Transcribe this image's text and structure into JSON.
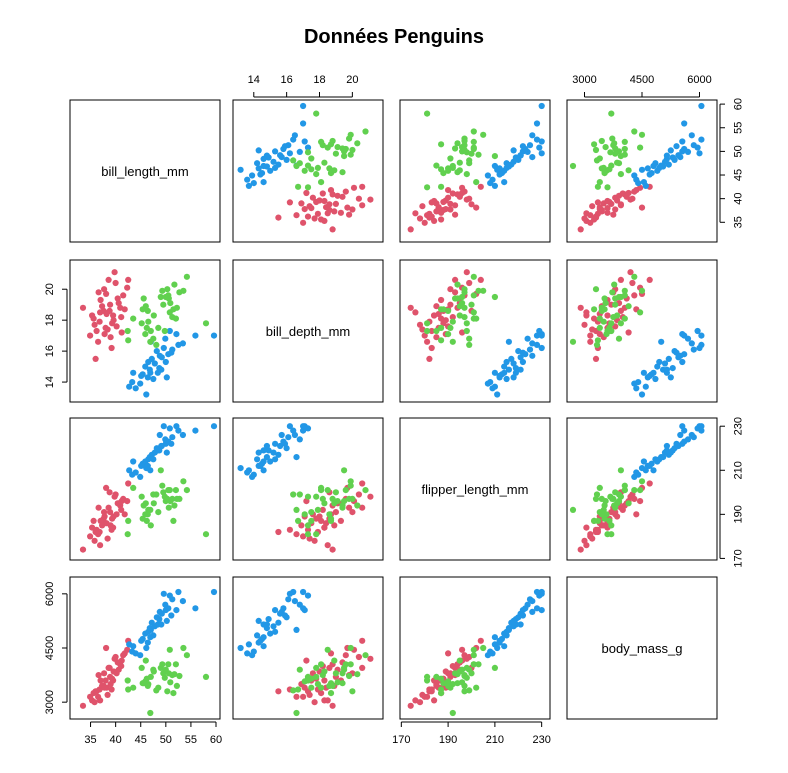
{
  "chart_data": {
    "type": "scatter",
    "title": "Données Penguins",
    "variables": [
      "bill_length_mm",
      "bill_depth_mm",
      "flipper_length_mm",
      "body_mass_g"
    ],
    "ranges": {
      "bill_length_mm": [
        32.1,
        59.6
      ],
      "bill_depth_mm": [
        13.1,
        21.5
      ],
      "flipper_length_mm": [
        172,
        231
      ],
      "body_mass_g": [
        2700,
        6300
      ]
    },
    "ticks": {
      "bill_length_mm": [
        35,
        40,
        45,
        50,
        55,
        60
      ],
      "bill_depth_mm": [
        14,
        16,
        18,
        20
      ],
      "flipper_length_mm": [
        170,
        190,
        210,
        230
      ],
      "body_mass_g": [
        3000,
        4500,
        6000
      ]
    },
    "tick_labels": {
      "bill_length_mm": [
        "35",
        "40",
        "45",
        "50",
        "55",
        "60"
      ],
      "bill_depth_mm": [
        "14",
        "16",
        "18",
        "20"
      ],
      "flipper_length_mm": [
        "170",
        "190",
        "210",
        "230"
      ],
      "body_mass_g": [
        "3000",
        "4500",
        "6000"
      ]
    },
    "series": [
      {
        "color": "#DF536B",
        "points": [
          [
            36.8,
            17.9,
            182,
            3350
          ],
          [
            38.0,
            17.5,
            186,
            3600
          ],
          [
            39.6,
            18.0,
            189,
            3850
          ],
          [
            40.9,
            18.8,
            194,
            4050
          ],
          [
            35.3,
            18.3,
            184,
            3050
          ],
          [
            37.6,
            18.6,
            188,
            3450
          ],
          [
            38.9,
            19.0,
            191,
            3700
          ],
          [
            41.5,
            19.6,
            197,
            4300
          ],
          [
            34.9,
            17.0,
            180,
            3150
          ],
          [
            36.2,
            17.3,
            183,
            3300
          ],
          [
            39.0,
            16.9,
            185,
            3500
          ],
          [
            40.2,
            17.6,
            190,
            3800
          ],
          [
            42.3,
            20.1,
            196,
            4450
          ],
          [
            37.0,
            19.3,
            187,
            3600
          ],
          [
            38.6,
            20.6,
            193,
            3950
          ],
          [
            39.8,
            21.1,
            198,
            4200
          ],
          [
            36.5,
            16.6,
            181,
            3150
          ],
          [
            38.2,
            18.4,
            186,
            3400
          ],
          [
            40.6,
            19.1,
            195,
            3900
          ],
          [
            41.1,
            18.2,
            192,
            4000
          ],
          [
            35.8,
            17.7,
            178,
            3000
          ],
          [
            37.3,
            18.9,
            185,
            3450
          ],
          [
            39.3,
            17.8,
            188,
            3650
          ],
          [
            40.0,
            20.4,
            199,
            4250
          ],
          [
            33.5,
            18.8,
            174,
            2900
          ],
          [
            36.0,
            15.5,
            182,
            3300
          ],
          [
            38.8,
            18.6,
            200,
            3950
          ],
          [
            42.5,
            20.6,
            204,
            4700
          ],
          [
            37.8,
            17.1,
            189,
            3400
          ],
          [
            39.5,
            18.3,
            184,
            3600
          ],
          [
            41.8,
            18.7,
            190,
            4350
          ],
          [
            36.6,
            19.8,
            193,
            3750
          ],
          [
            38.4,
            17.4,
            179,
            3200
          ],
          [
            40.4,
            19.4,
            195,
            4100
          ],
          [
            35.6,
            18.1,
            187,
            3250
          ],
          [
            37.7,
            20.0,
            191,
            3800
          ],
          [
            39.2,
            16.2,
            183,
            3350
          ],
          [
            41.2,
            17.2,
            196,
            4150
          ],
          [
            36.9,
            18.5,
            176,
            3050
          ],
          [
            38.1,
            19.7,
            202,
            4500
          ]
        ]
      },
      {
        "color": "#2297E6",
        "points": [
          [
            46.1,
            13.2,
            211,
            4500
          ],
          [
            47.5,
            14.2,
            215,
            4850
          ],
          [
            48.7,
            14.9,
            219,
            5300
          ],
          [
            50.0,
            15.3,
            222,
            5550
          ],
          [
            44.0,
            13.6,
            209,
            4350
          ],
          [
            45.4,
            14.5,
            213,
            4750
          ],
          [
            46.8,
            14.8,
            216,
            5050
          ],
          [
            49.2,
            15.6,
            221,
            5450
          ],
          [
            51.3,
            16.1,
            225,
            5850
          ],
          [
            52.5,
            16.4,
            228,
            6050
          ],
          [
            43.3,
            14.0,
            208,
            4400
          ],
          [
            45.9,
            15.0,
            214,
            4900
          ],
          [
            47.2,
            15.5,
            217,
            5200
          ],
          [
            48.2,
            16.0,
            220,
            5350
          ],
          [
            49.9,
            16.8,
            224,
            5700
          ],
          [
            50.8,
            17.3,
            229,
            5950
          ],
          [
            42.7,
            13.7,
            210,
            4600
          ],
          [
            46.4,
            14.3,
            212,
            4650
          ],
          [
            47.8,
            15.2,
            218,
            5100
          ],
          [
            50.5,
            15.8,
            223,
            5600
          ],
          [
            53.4,
            16.5,
            226,
            5800
          ],
          [
            44.9,
            13.9,
            207,
            4300
          ],
          [
            46.5,
            15.3,
            215,
            4950
          ],
          [
            48.4,
            14.6,
            219,
            5150
          ],
          [
            49.6,
            16.2,
            230,
            6000
          ],
          [
            51.1,
            15.9,
            222,
            5400
          ],
          [
            45.1,
            14.4,
            212,
            4700
          ],
          [
            47.0,
            16.6,
            216,
            5000
          ],
          [
            48.8,
            15.7,
            226,
            5500
          ],
          [
            43.5,
            14.6,
            214,
            4550
          ],
          [
            55.9,
            17.0,
            228,
            5600
          ],
          [
            59.6,
            17.0,
            230,
            6050
          ],
          [
            50.2,
            14.3,
            218,
            5250
          ],
          [
            46.9,
            14.6,
            210,
            4800
          ],
          [
            52.1,
            17.1,
            230,
            5550
          ],
          [
            49.1,
            14.8,
            221,
            5150
          ]
        ]
      },
      {
        "color": "#61D04F",
        "points": [
          [
            46.5,
            17.9,
            192,
            3500
          ],
          [
            49.0,
            19.5,
            210,
            3950
          ],
          [
            50.5,
            19.6,
            201,
            4050
          ],
          [
            45.2,
            17.8,
            198,
            3950
          ],
          [
            51.3,
            18.2,
            197,
            3750
          ],
          [
            47.0,
            17.3,
            185,
            3700
          ],
          [
            50.0,
            19.5,
            196,
            3900
          ],
          [
            46.0,
            18.9,
            195,
            4150
          ],
          [
            52.0,
            18.1,
            201,
            4050
          ],
          [
            49.5,
            19.0,
            200,
            3800
          ],
          [
            45.4,
            18.7,
            188,
            3525
          ],
          [
            48.5,
            17.5,
            191,
            3400
          ],
          [
            51.7,
            20.3,
            194,
            3775
          ],
          [
            46.2,
            17.5,
            187,
            3650
          ],
          [
            50.9,
            19.1,
            196,
            3550
          ],
          [
            42.5,
            16.7,
            187,
            3350
          ],
          [
            47.6,
            18.3,
            195,
            3850
          ],
          [
            52.7,
            19.8,
            197,
            3725
          ],
          [
            45.9,
            17.1,
            190,
            3575
          ],
          [
            50.6,
            19.4,
            193,
            3800
          ],
          [
            49.3,
            19.9,
            203,
            4050
          ],
          [
            46.4,
            18.6,
            190,
            3450
          ],
          [
            53.5,
            19.9,
            205,
            4500
          ],
          [
            43.5,
            18.1,
            202,
            3400
          ],
          [
            50.8,
            18.5,
            201,
            4450
          ],
          [
            45.6,
            19.4,
            194,
            3525
          ],
          [
            51.5,
            18.7,
            187,
            3250
          ],
          [
            46.9,
            16.6,
            192,
            2700
          ],
          [
            49.8,
            17.3,
            198,
            3675
          ],
          [
            48.1,
            16.4,
            199,
            3325
          ],
          [
            54.2,
            20.8,
            201,
            4300
          ],
          [
            42.4,
            17.3,
            181,
            3600
          ],
          [
            58.0,
            17.8,
            181,
            3700
          ],
          [
            50.3,
            20.0,
            197,
            3300
          ],
          [
            47.5,
            16.8,
            199,
            3900
          ],
          [
            52.2,
            18.8,
            197,
            3450
          ]
        ]
      }
    ],
    "panel_grid": "4x4 scatterplot matrix; diagonal panels show variable names"
  }
}
